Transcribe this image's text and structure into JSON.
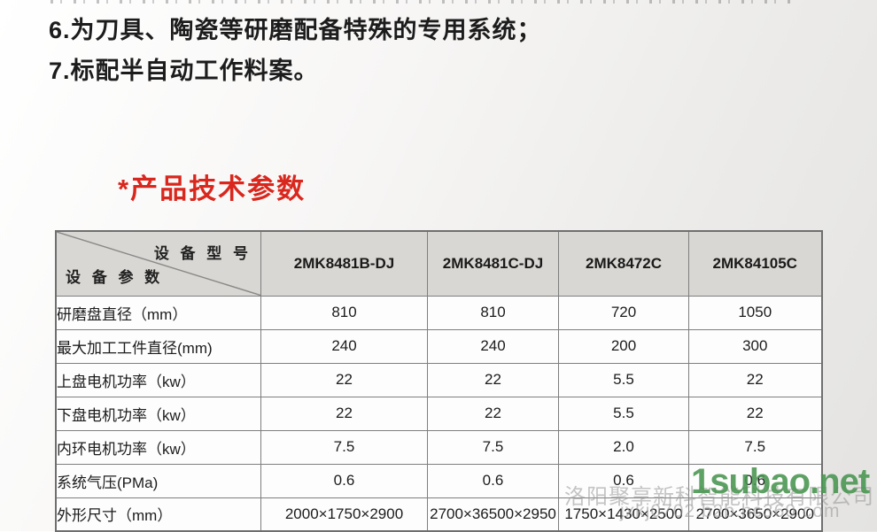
{
  "features": {
    "line6": "6.为刀具、陶瓷等研磨配备特殊的专用系统；",
    "line7": "7.标配半自动工作料案。"
  },
  "section": {
    "title": "*产品技术参数",
    "title_color": "#d9271d"
  },
  "table": {
    "corner": {
      "top_right": "设 备 型 号",
      "bottom_left": "设 备 参 数"
    },
    "models": [
      "2MK8481B-DJ",
      "2MK8481C-DJ",
      "2MK8472C",
      "2MK84105C"
    ],
    "rows": [
      {
        "label": "研磨盘直径（mm）",
        "values": [
          "810",
          "810",
          "720",
          "1050"
        ]
      },
      {
        "label": "最大加工工件直径(mm)",
        "values": [
          "240",
          "240",
          "200",
          "300"
        ]
      },
      {
        "label": "上盘电机功率（kw）",
        "values": [
          "22",
          "22",
          "5.5",
          "22"
        ]
      },
      {
        "label": "下盘电机功率（kw）",
        "values": [
          "22",
          "22",
          "5.5",
          "22"
        ]
      },
      {
        "label": "内环电机功率（kw）",
        "values": [
          "7.5",
          "7.5",
          "2.0",
          "7.5"
        ]
      },
      {
        "label": "系统气压(PMa)",
        "values": [
          "0.6",
          "0.6",
          "0.6",
          "0.6"
        ]
      },
      {
        "label": "外形尺寸（mm）",
        "values": [
          "2000×1750×2900",
          "2700×36500×2950",
          "1750×1430×2500",
          "2700×3650×2900"
        ]
      }
    ],
    "border_color": "#7e7e7e",
    "header_bg": "#d9d7d3"
  },
  "watermark": {
    "company": "洛阳聚享新科智能科技有限公司",
    "site": "1subao.net",
    "site_color": "#48944e",
    "url": "jxkj0702.b2b.hc360.com"
  }
}
